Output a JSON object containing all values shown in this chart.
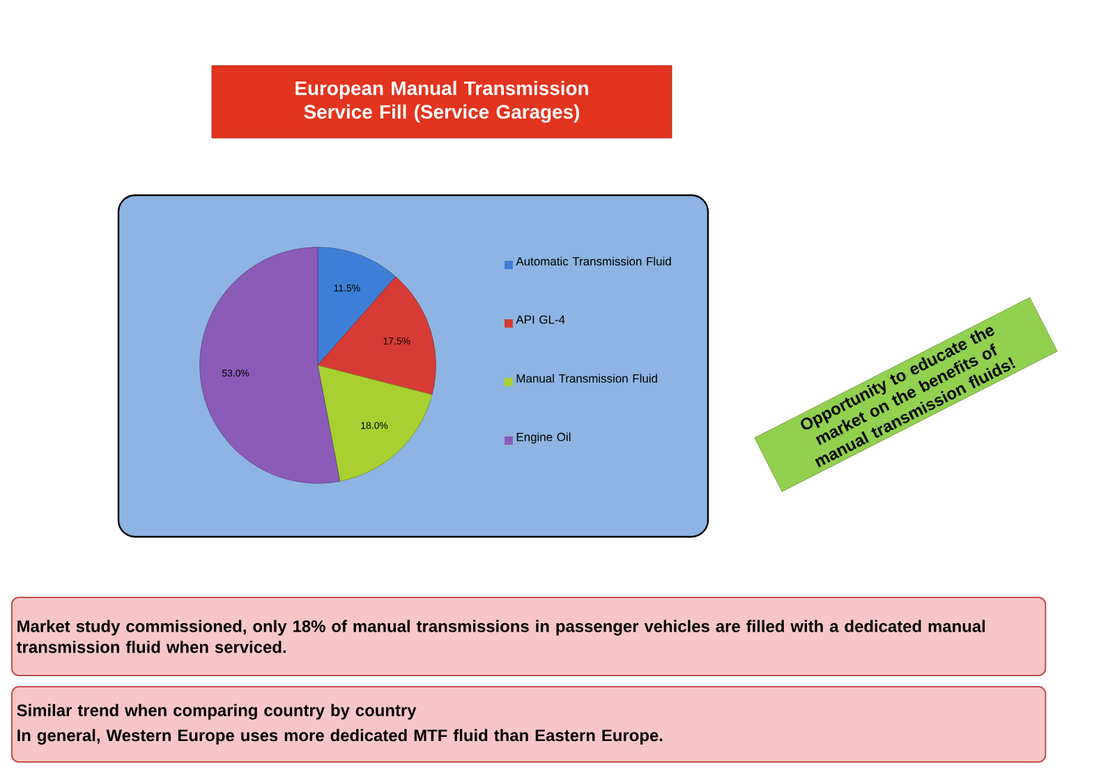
{
  "chart_data": {
    "type": "pie",
    "title": "European Manual Transmission Service Fill (Service Garages)",
    "categories": [
      "Automatic Transmission Fluid",
      "API GL-4",
      "Manual Transmission Fluid",
      "Engine Oil"
    ],
    "values": [
      11.5,
      17.5,
      18.0,
      53.0
    ],
    "colors": [
      "#3d7fd6",
      "#d63b35",
      "#a8d030",
      "#8a5cb8"
    ],
    "value_labels": [
      "11.5%",
      "17.5%",
      "18.0%",
      "53.0%"
    ],
    "legend": "right",
    "annotations": [
      "Opportunity to educate the market on the benefits of manual transmission fluids!",
      "Market study commissioned, only 18% of manual transmissions in passenger vehicles are filled with a dedicated manual transmission fluid when serviced.",
      "Similar trend when comparing country by country",
      "In general, Western Europe uses more dedicated MTF fluid than Eastern Europe."
    ]
  }
}
